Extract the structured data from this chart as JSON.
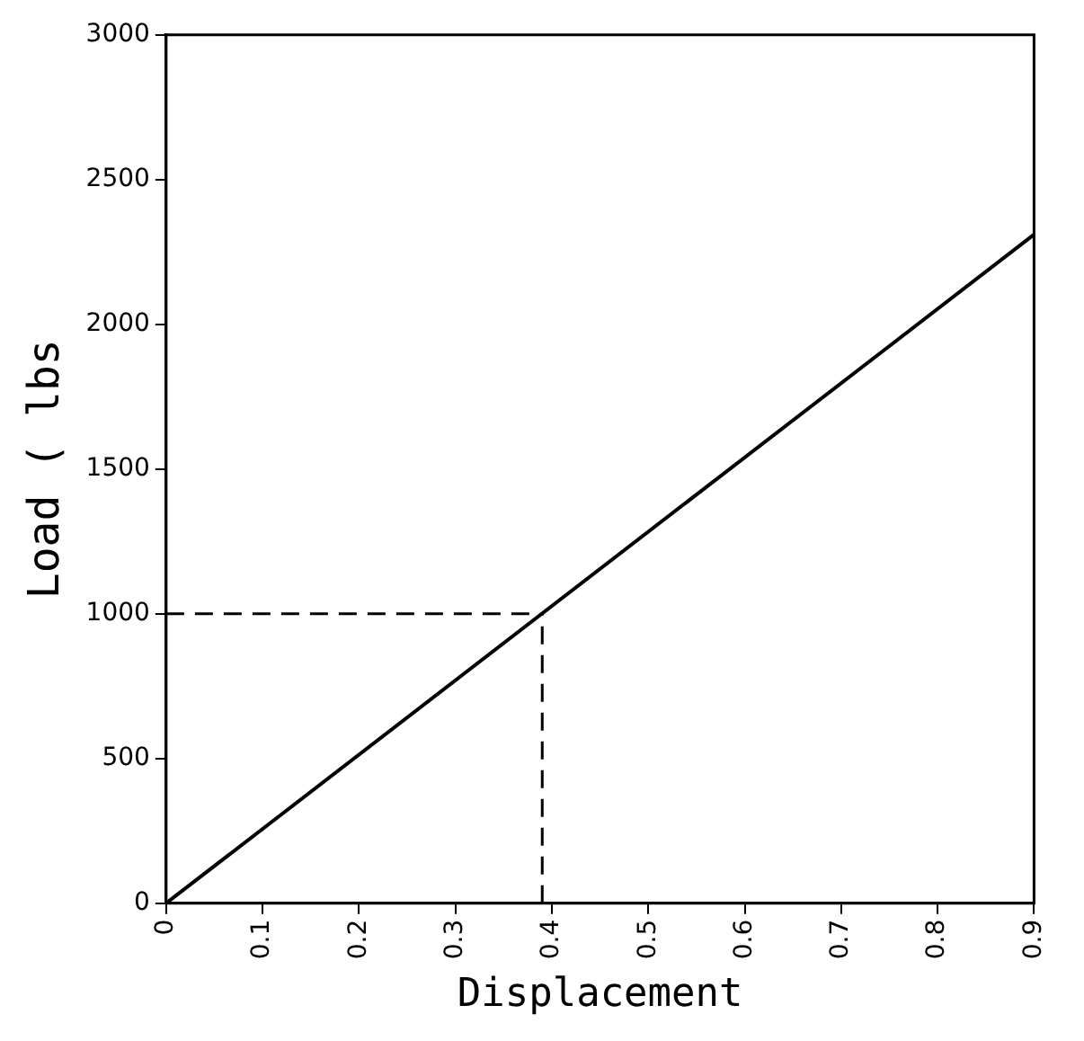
{
  "chart_data": {
    "type": "line",
    "xlabel": "Displacement",
    "ylabel": "Load ( lbs",
    "x": [
      0,
      0.9
    ],
    "series": [
      {
        "color": "#000000",
        "values": [
          0,
          2310
        ]
      }
    ],
    "xlim": [
      0,
      0.9
    ],
    "xticks": [
      0,
      0.1,
      0.2,
      0.3,
      0.4,
      0.5,
      0.6,
      0.7,
      0.8,
      0.9
    ],
    "ylim": [
      0,
      3000
    ],
    "yticks": [
      0,
      500,
      1000,
      1500,
      2000,
      2500,
      3000
    ],
    "ref_lines": [
      {
        "axis": "x",
        "value": 0.39,
        "line_style": "dashed",
        "color": "#000000"
      },
      {
        "axis": "y",
        "value": 1000,
        "line_style": "dashed",
        "color": "#000000"
      }
    ],
    "grid": false,
    "legend": false,
    "marker": "none",
    "line_style": "solid"
  }
}
